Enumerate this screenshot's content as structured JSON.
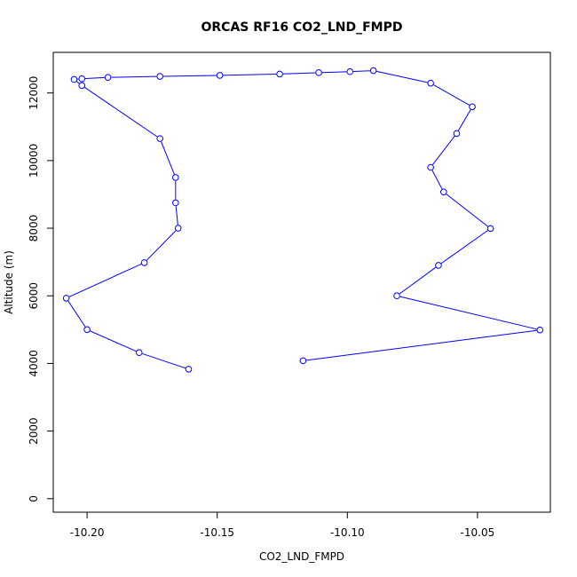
{
  "chart_data": {
    "type": "line",
    "title": "ORCAS RF16 CO2_LND_FMPD",
    "xlabel": "CO2_LND_FMPD",
    "ylabel": "Altitude (m)",
    "xlim": [
      -10.213,
      -10.022
    ],
    "ylim": [
      -400,
      13200
    ],
    "xticks": [
      -10.2,
      -10.15,
      -10.1,
      -10.05
    ],
    "xtick_labels": [
      "-10.20",
      "-10.15",
      "-10.10",
      "-10.05"
    ],
    "yticks": [
      0,
      2000,
      4000,
      6000,
      8000,
      10000,
      12000
    ],
    "ytick_labels": [
      "0",
      "2000",
      "4000",
      "6000",
      "8000",
      "10000",
      "12000"
    ],
    "grid": false,
    "legend": "none",
    "series": [
      {
        "color": "#0000ff",
        "marker": "open-circle",
        "x": [
          -10.161,
          -10.18,
          -10.2,
          -10.208,
          -10.178,
          -10.165,
          -10.166,
          -10.166,
          -10.172,
          -10.202,
          -10.205,
          -10.202,
          -10.192,
          -10.172,
          -10.149,
          -10.126,
          -10.111,
          -10.099,
          -10.09,
          -10.068,
          -10.052,
          -10.058,
          -10.068,
          -10.063,
          -10.045,
          -10.065,
          -10.081,
          -10.026,
          -10.117
        ],
        "y": [
          3830,
          4320,
          5000,
          5930,
          6980,
          8000,
          8750,
          9500,
          10650,
          12220,
          12400,
          12420,
          12460,
          12490,
          12520,
          12560,
          12600,
          12630,
          12660,
          12290,
          11590,
          10800,
          9800,
          9070,
          7990,
          6900,
          6000,
          4990,
          4080
        ]
      }
    ]
  }
}
